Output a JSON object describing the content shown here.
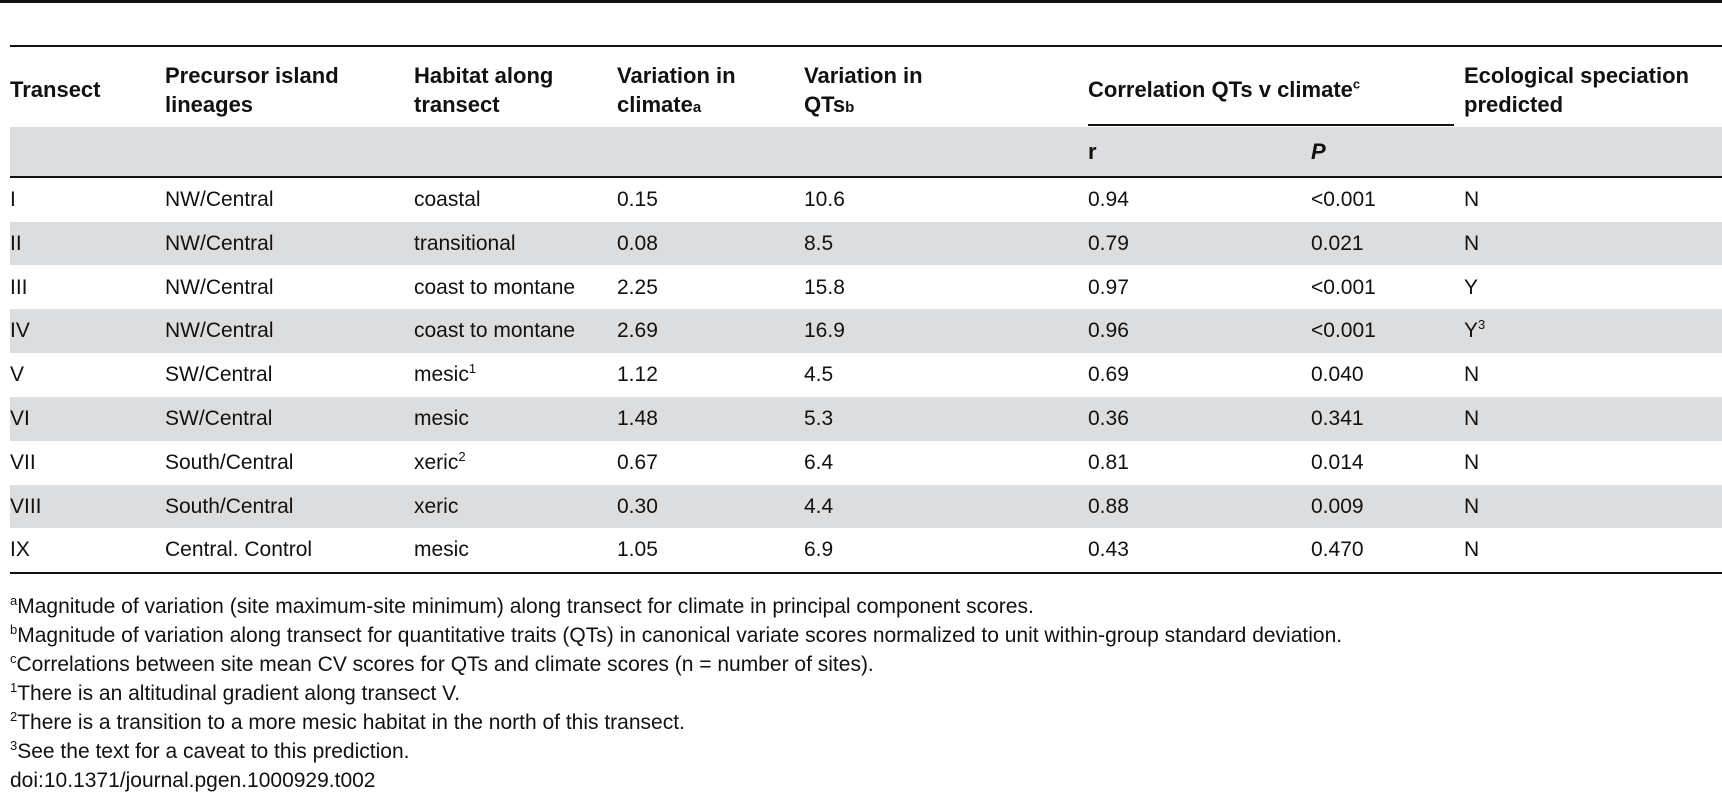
{
  "header": {
    "transect": "Transect",
    "lineages": "Precursor island lineages",
    "habitat": "Habitat along transect",
    "var_climate": "Variation in climate",
    "var_climate_mark": "a",
    "var_qts": "Variation in QTs",
    "var_qts_mark": "b",
    "correlation": "Correlation QTs v climate",
    "correlation_mark": "c",
    "r": "r",
    "p": "P",
    "eco": "Ecological speciation predicted"
  },
  "rows": [
    {
      "transect": "I",
      "lineage": "NW/Central",
      "habitat": "coastal",
      "habitat_sup": "",
      "var_climate": "0.15",
      "var_qts": "10.6",
      "r": "0.94",
      "p": "<0.001",
      "eco": "N",
      "eco_sup": ""
    },
    {
      "transect": "II",
      "lineage": "NW/Central",
      "habitat": "transitional",
      "habitat_sup": "",
      "var_climate": "0.08",
      "var_qts": "8.5",
      "r": "0.79",
      "p": "0.021",
      "eco": "N",
      "eco_sup": ""
    },
    {
      "transect": "III",
      "lineage": "NW/Central",
      "habitat": "coast to montane",
      "habitat_sup": "",
      "var_climate": "2.25",
      "var_qts": "15.8",
      "r": "0.97",
      "p": "<0.001",
      "eco": "Y",
      "eco_sup": ""
    },
    {
      "transect": "IV",
      "lineage": "NW/Central",
      "habitat": "coast to montane",
      "habitat_sup": "",
      "var_climate": "2.69",
      "var_qts": "16.9",
      "r": "0.96",
      "p": "<0.001",
      "eco": "Y",
      "eco_sup": "3"
    },
    {
      "transect": "V",
      "lineage": "SW/Central",
      "habitat": "mesic",
      "habitat_sup": "1",
      "var_climate": "1.12",
      "var_qts": "4.5",
      "r": "0.69",
      "p": "0.040",
      "eco": "N",
      "eco_sup": ""
    },
    {
      "transect": "VI",
      "lineage": "SW/Central",
      "habitat": "mesic",
      "habitat_sup": "",
      "var_climate": "1.48",
      "var_qts": "5.3",
      "r": "0.36",
      "p": "0.341",
      "eco": "N",
      "eco_sup": ""
    },
    {
      "transect": "VII",
      "lineage": "South/Central",
      "habitat": "xeric",
      "habitat_sup": "2",
      "var_climate": "0.67",
      "var_qts": "6.4",
      "r": "0.81",
      "p": "0.014",
      "eco": "N",
      "eco_sup": ""
    },
    {
      "transect": "VIII",
      "lineage": "South/Central",
      "habitat": "xeric",
      "habitat_sup": "",
      "var_climate": "0.30",
      "var_qts": "4.4",
      "r": "0.88",
      "p": "0.009",
      "eco": "N",
      "eco_sup": ""
    },
    {
      "transect": "IX",
      "lineage": "Central. Control",
      "habitat": "mesic",
      "habitat_sup": "",
      "var_climate": "1.05",
      "var_qts": "6.9",
      "r": "0.43",
      "p": "0.470",
      "eco": "N",
      "eco_sup": ""
    }
  ],
  "footnotes": [
    {
      "mark": "a",
      "text": "Magnitude of variation (site maximum-site minimum) along transect for climate in principal component scores."
    },
    {
      "mark": "b",
      "text": "Magnitude of variation along transect for quantitative traits (QTs) in canonical variate scores normalized to unit within-group standard deviation."
    },
    {
      "mark": "c",
      "text": "Correlations between site mean CV scores for QTs and climate scores (n = number of sites)."
    },
    {
      "mark": "1",
      "text": "There is an altitudinal gradient along transect V."
    },
    {
      "mark": "2",
      "text": "There is a transition to a more mesic habitat in the north of this transect."
    },
    {
      "mark": "3",
      "text": "See the text for a caveat to this prediction."
    }
  ],
  "doi": "doi:10.1371/journal.pgen.1000929.t002"
}
